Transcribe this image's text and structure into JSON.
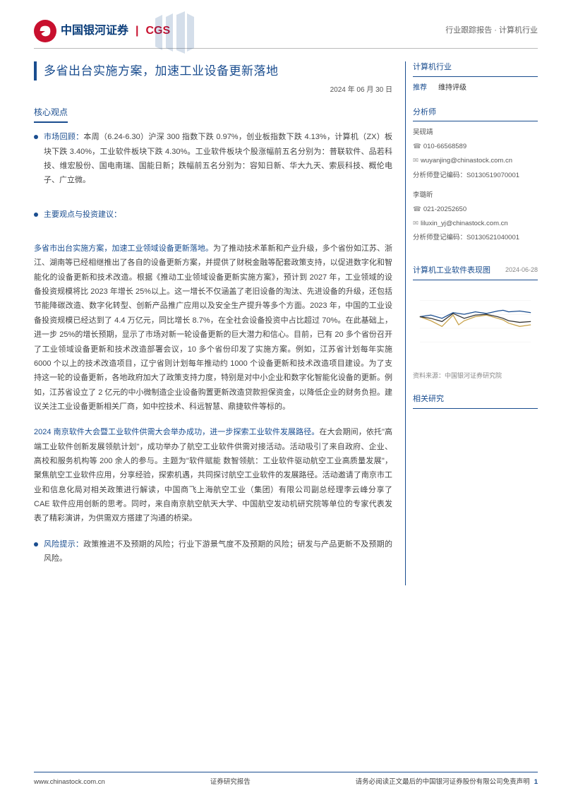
{
  "header": {
    "logo_cn": "中国银河证券",
    "logo_en": "CGS",
    "right_text": "行业跟踪报告 · 计算机行业"
  },
  "title": "多省出台实施方案，加速工业设备更新落地",
  "date": "2024 年 06 月 30 日",
  "section_core": "核心观点",
  "bullets": {
    "market": {
      "label": "市场回顾：",
      "text": "本周（6.24-6.30）沪深 300 指数下跌 0.97%，创业板指数下跌 4.13%，计算机（ZX）板块下跌 3.40%，工业软件板块下跌 4.30%。工业软件板块个股涨幅前五名分别为：普联软件、品若科技、维宏股份、国电南瑞、国能日新；跌幅前五名分别为：容知日新、华大九天、索辰科技、概伦电子、广立微。"
    },
    "main_view_label": "主要观点与投资建议：",
    "para1": {
      "lead": "多省市出台实施方案，加速工业领域设备更新落地。",
      "body": "为了推动技术革新和产业升级，多个省份如江苏、浙江、湖南等已经相继推出了各自的设备更新方案，并提供了财税金融等配套政策支持，以促进数字化和智能化的设备更新和技术改造。根据《推动工业领域设备更新实施方案》，预计到 2027 年，工业领域的设备投资规模将比 2023 年增长 25%以上。这一增长不仅涵盖了老旧设备的淘汰、先进设备的升级，还包括节能降碳改造、数字化转型、创新产品推广应用以及安全生产提升等多个方面。2023 年，中国的工业设备投资规模已经达到了 4.4 万亿元，同比增长 8.7%，在全社会设备投资中占比超过 70%。在此基础上，进一步 25%的增长预期，显示了市场对新一轮设备更新的巨大潜力和信心。目前，已有 20 多个省份召开了工业领域设备更新和技术改造部署会议，10 多个省份印发了实施方案。例如，江苏省计划每年实施 6000 个以上的技术改造项目，辽宁省则计划每年推动约 1000 个设备更新和技术改造项目建设。为了支持这一轮的设备更新，各地政府加大了政策支持力度，特别是对中小企业和数字化智能化设备的更新。例如，江苏省设立了 2 亿元的中小微制造企业设备购置更新改造贷款担保资金，以降低企业的财务负担。建议关注工业设备更新相关厂商，如中控技术、科远智慧、鼎捷软件等标的。"
    },
    "para2": {
      "lead": "2024 南京软件大会暨工业软件供需大会举办成功，进一步探索工业软件发展路径。",
      "body": "在大会期间，依托\"高端工业软件创新发展领航计划\"，成功举办了航空工业软件供需对接活动。活动吸引了来自政府、企业、高校和服务机构等 200 余人的参与。主题为\"软件赋能 数智领航：工业软件驱动航空工业高质量发展\"，聚焦航空工业软件应用，分享经验，探索机遇，共同探讨航空工业软件的发展路径。活动邀请了南京市工业和信息化局对相关政策进行解读，中国商飞上海航空工业（集团）有限公司副总经理李云峰分享了 CAE 软件应用创新的思考。同时，来自南京航空航天大学、中国航空发动机研究院等单位的专家代表发表了精彩演讲，为供需双方搭建了沟通的桥梁。"
    },
    "risk": {
      "label": "风险提示：",
      "text": "政策推进不及预期的风险；行业下游景气度不及预期的风险；研发与产品更新不及预期的风险。"
    }
  },
  "right": {
    "industry_title": "计算机行业",
    "rating_label": "推荐",
    "rating_value": "维持评级",
    "analyst_title": "分析师",
    "analysts": [
      {
        "name": "吴砚靖",
        "phone": "010-66568589",
        "email": "wuyanjing@chinastock.com.cn",
        "code_label": "分析师登记编码：",
        "code": "S0130519070001"
      },
      {
        "name": "李璐昕",
        "phone": "021-20252650",
        "email": "liluxin_yj@chinastock.com.cn",
        "code_label": "分析师登记编码：",
        "code": "S0130521040001"
      }
    ],
    "chart_title": "计算机工业软件表现图",
    "chart_date": "2024-06-28",
    "chart_source": "资料来源：中国银河证券研究院",
    "chart": {
      "series": [
        {
          "color": "#1a4d8f",
          "points": [
            [
              0,
              40
            ],
            [
              10,
              42
            ],
            [
              20,
              38
            ],
            [
              30,
              45
            ],
            [
              40,
              43
            ],
            [
              50,
              46
            ],
            [
              60,
              44
            ],
            [
              70,
              47
            ],
            [
              75,
              48
            ],
            [
              80,
              46
            ],
            [
              90,
              47
            ],
            [
              100,
              45
            ]
          ]
        },
        {
          "color": "#c8a24a",
          "points": [
            [
              0,
              40
            ],
            [
              10,
              35
            ],
            [
              20,
              28
            ],
            [
              30,
              42
            ],
            [
              35,
              30
            ],
            [
              40,
              35
            ],
            [
              50,
              40
            ],
            [
              60,
              42
            ],
            [
              70,
              38
            ],
            [
              75,
              36
            ],
            [
              80,
              32
            ],
            [
              90,
              28
            ],
            [
              100,
              30
            ]
          ]
        },
        {
          "color": "#333333",
          "points": [
            [
              0,
              40
            ],
            [
              10,
              38
            ],
            [
              20,
              34
            ],
            [
              30,
              44
            ],
            [
              40,
              38
            ],
            [
              50,
              42
            ],
            [
              60,
              43
            ],
            [
              70,
              40
            ],
            [
              75,
              38
            ],
            [
              80,
              35
            ],
            [
              90,
              33
            ],
            [
              100,
              34
            ]
          ]
        }
      ]
    },
    "related_title": "相关研究"
  },
  "footer": {
    "left": "www.chinastock.com.cn",
    "center": "证券研究报告",
    "right": "请务必阅读正文最后的中国银河证券股份有限公司免责声明",
    "page": "1"
  }
}
